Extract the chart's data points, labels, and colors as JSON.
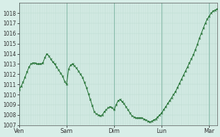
{
  "background_color": "#d8eee8",
  "grid_color": "#b8d8cc",
  "sep_color": "#88bbaa",
  "line_color": "#1a6b2a",
  "marker": "x",
  "marker_size": 2,
  "ylim": [
    1007,
    1019
  ],
  "yticks": [
    1007,
    1008,
    1009,
    1010,
    1011,
    1012,
    1013,
    1014,
    1015,
    1016,
    1017,
    1018
  ],
  "xtick_labels": [
    "Ven",
    "Sam",
    "Dim",
    "Lun",
    "Mar"
  ],
  "xtick_positions": [
    0,
    48,
    96,
    144,
    192
  ],
  "xlim": [
    0,
    200
  ],
  "data_x": [
    0,
    2,
    4,
    6,
    8,
    10,
    12,
    14,
    16,
    18,
    20,
    22,
    24,
    26,
    28,
    30,
    32,
    34,
    36,
    38,
    40,
    42,
    44,
    46,
    48,
    50,
    52,
    54,
    56,
    58,
    60,
    62,
    64,
    66,
    68,
    70,
    72,
    74,
    76,
    78,
    80,
    82,
    84,
    86,
    88,
    90,
    92,
    94,
    96,
    98,
    100,
    102,
    104,
    106,
    108,
    110,
    112,
    114,
    116,
    118,
    120,
    122,
    124,
    126,
    128,
    130,
    132,
    134,
    136,
    138,
    140,
    142,
    144,
    146,
    148,
    150,
    152,
    154,
    156,
    158,
    160,
    162,
    164,
    166,
    168,
    170,
    172,
    174,
    176,
    178,
    180,
    182,
    184,
    186,
    188,
    190,
    192,
    194,
    196,
    198,
    200
  ],
  "data_y": [
    1010.5,
    1010.8,
    1011.2,
    1011.7,
    1012.2,
    1012.7,
    1013.0,
    1013.1,
    1013.1,
    1013.0,
    1013.0,
    1013.0,
    1013.1,
    1013.6,
    1014.0,
    1013.8,
    1013.5,
    1013.2,
    1013.0,
    1012.7,
    1012.4,
    1012.1,
    1011.8,
    1011.3,
    1011.0,
    1012.5,
    1012.9,
    1013.0,
    1012.8,
    1012.6,
    1012.3,
    1012.0,
    1011.7,
    1011.2,
    1010.7,
    1010.1,
    1009.5,
    1008.9,
    1008.3,
    1008.1,
    1008.0,
    1007.9,
    1008.0,
    1008.3,
    1008.5,
    1008.7,
    1008.8,
    1008.7,
    1008.5,
    1009.0,
    1009.4,
    1009.5,
    1009.3,
    1009.1,
    1008.8,
    1008.5,
    1008.2,
    1007.9,
    1007.8,
    1007.7,
    1007.7,
    1007.7,
    1007.7,
    1007.6,
    1007.5,
    1007.4,
    1007.3,
    1007.4,
    1007.5,
    1007.6,
    1007.8,
    1008.0,
    1008.2,
    1008.5,
    1008.8,
    1009.1,
    1009.4,
    1009.7,
    1010.0,
    1010.3,
    1010.7,
    1011.1,
    1011.5,
    1011.9,
    1012.3,
    1012.7,
    1013.1,
    1013.5,
    1013.9,
    1014.4,
    1014.9,
    1015.5,
    1016.0,
    1016.5,
    1017.0,
    1017.4,
    1017.7,
    1018.0,
    1018.2,
    1018.3,
    1018.4
  ]
}
